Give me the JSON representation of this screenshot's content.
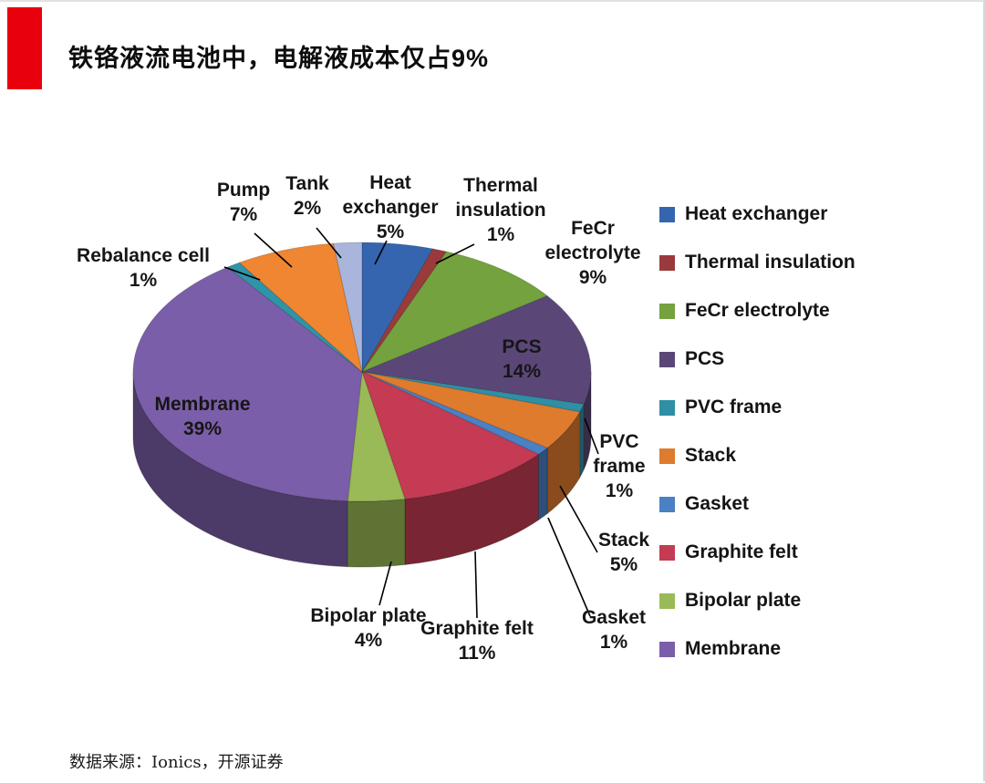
{
  "page": {
    "title": "铁铬液流电池中，电解液成本仅占9%",
    "source": "数据来源：Ionics，开源证券",
    "accent_color": "#E8000D"
  },
  "chart_data": {
    "type": "pie",
    "style": "3d",
    "unit": "percent",
    "direction": "clockwise",
    "start_angle_deg": 0,
    "legend_position": "right",
    "slices": [
      {
        "id": "heat_exchanger",
        "label": "Heat exchanger",
        "value": 5,
        "pct": "5%",
        "label_lines": [
          "Heat",
          "exchanger",
          "5%"
        ],
        "color": "#3565AF",
        "in_legend": true
      },
      {
        "id": "thermal_insulation",
        "label": "Thermal insulation",
        "value": 1,
        "pct": "1%",
        "label_lines": [
          "Thermal",
          "insulation",
          "1%"
        ],
        "color": "#9B3A3B",
        "in_legend": true
      },
      {
        "id": "fecr_electrolyte",
        "label": "FeCr electrolyte",
        "value": 9,
        "pct": "9%",
        "label_lines": [
          "FeCr",
          "electrolyte",
          "9%"
        ],
        "color": "#74A23E",
        "in_legend": true
      },
      {
        "id": "pcs",
        "label": "PCS",
        "value": 14,
        "pct": "14%",
        "label_lines": [
          "PCS",
          "14%"
        ],
        "color": "#5A4778",
        "in_legend": true
      },
      {
        "id": "pvc_frame",
        "label": "PVC frame",
        "value": 1,
        "pct": "1%",
        "label_lines": [
          "PVC",
          "frame",
          "1%"
        ],
        "color": "#2E8FA5",
        "in_legend": true
      },
      {
        "id": "stack",
        "label": "Stack",
        "value": 5,
        "pct": "5%",
        "label_lines": [
          "Stack",
          "5%"
        ],
        "color": "#DE7B2D",
        "in_legend": true
      },
      {
        "id": "gasket",
        "label": "Gasket",
        "value": 1,
        "pct": "1%",
        "label_lines": [
          "Gasket",
          "1%"
        ],
        "color": "#4A80C4",
        "in_legend": true
      },
      {
        "id": "graphite_felt",
        "label": "Graphite felt",
        "value": 11,
        "pct": "11%",
        "label_lines": [
          "Graphite felt",
          "11%"
        ],
        "color": "#C43B53",
        "in_legend": true
      },
      {
        "id": "bipolar_plate",
        "label": "Bipolar plate",
        "value": 4,
        "pct": "4%",
        "label_lines": [
          "Bipolar plate",
          "4%"
        ],
        "color": "#99BA56",
        "in_legend": true
      },
      {
        "id": "membrane",
        "label": "Membrane",
        "value": 39,
        "pct": "39%",
        "label_lines": [
          "Membrane",
          "39%"
        ],
        "color": "#7B5EA9",
        "in_legend": true
      },
      {
        "id": "rebalance_cell",
        "label": "Rebalance cell",
        "value": 1,
        "pct": "1%",
        "label_lines": [
          "Rebalance cell",
          "1%"
        ],
        "color": "#2E95A8",
        "in_legend": false
      },
      {
        "id": "pump",
        "label": "Pump",
        "value": 7,
        "pct": "7%",
        "label_lines": [
          "Pump",
          "7%"
        ],
        "color": "#F08632",
        "in_legend": false
      },
      {
        "id": "tank",
        "label": "Tank",
        "value": 2,
        "pct": "2%",
        "label_lines": [
          "Tank",
          "2%"
        ],
        "color": "#A9B5DB",
        "in_legend": false
      }
    ]
  }
}
